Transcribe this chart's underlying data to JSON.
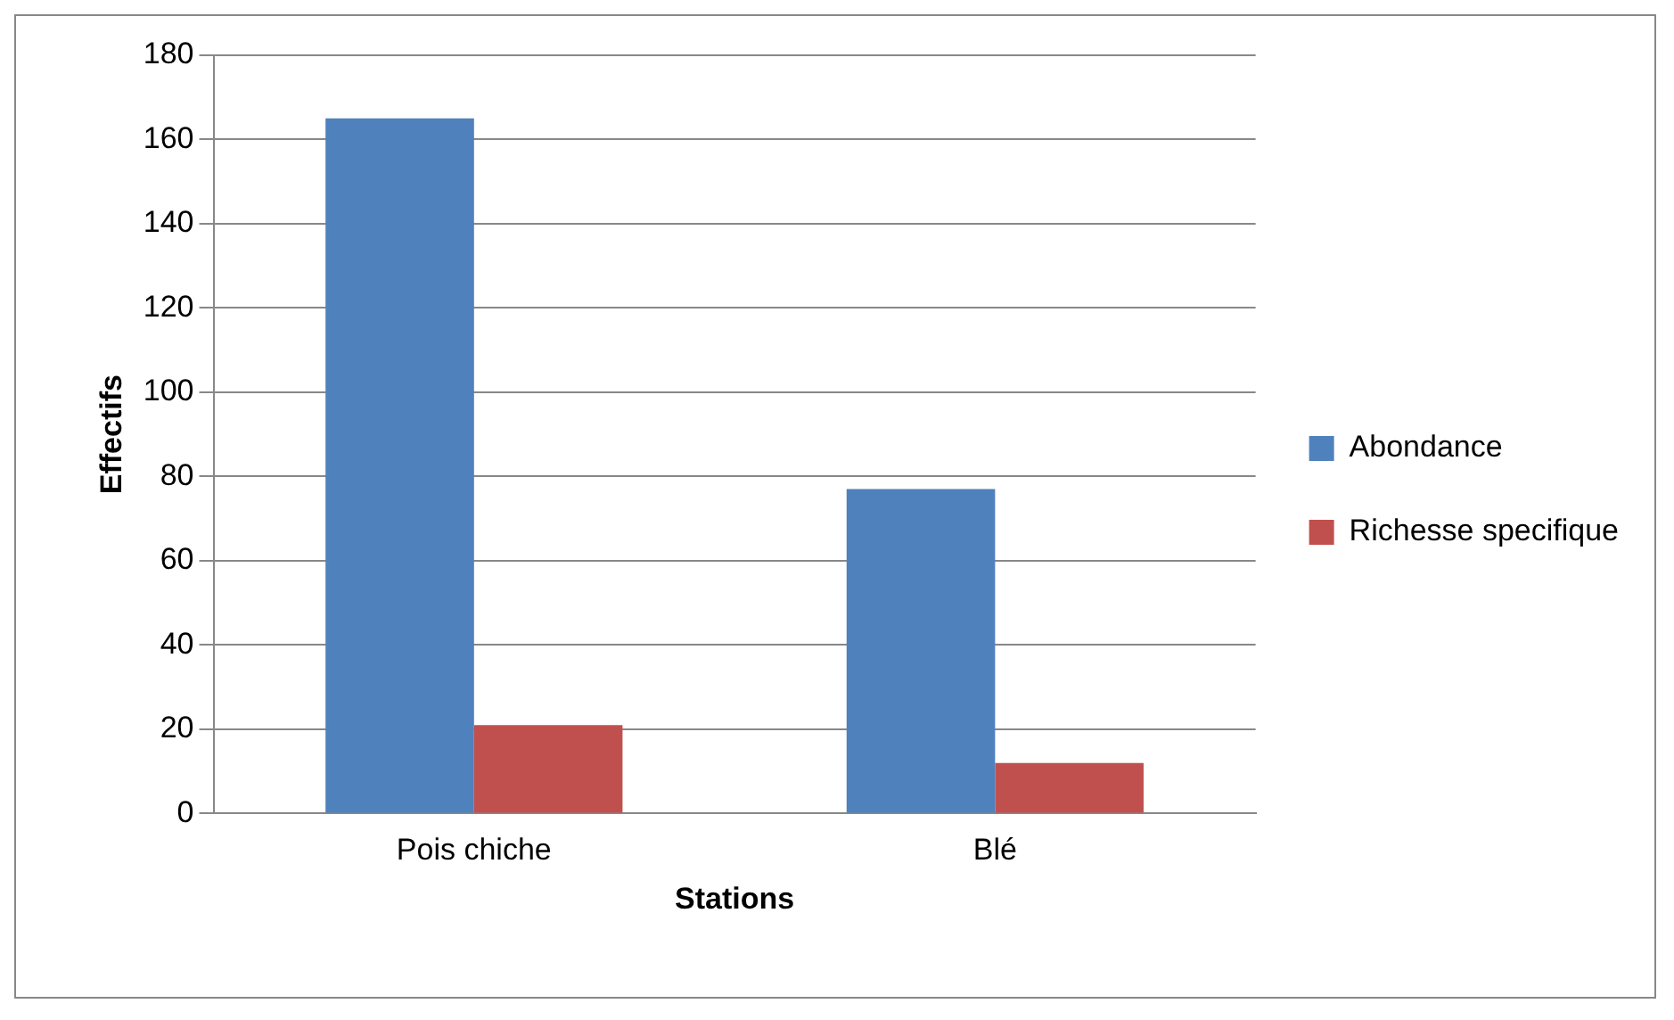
{
  "chart_data": {
    "type": "bar",
    "xlabel": "Stations",
    "ylabel": "Effectifs",
    "categories": [
      "Pois chiche",
      "Blé"
    ],
    "series": [
      {
        "name": "Abondance",
        "color": "#4f81bd",
        "values": [
          165,
          77
        ]
      },
      {
        "name": "Richesse specifique",
        "color": "#c0504d",
        "values": [
          21,
          12
        ]
      }
    ],
    "ylim": [
      0,
      180
    ],
    "yticks": [
      0,
      20,
      40,
      60,
      80,
      100,
      120,
      140,
      160,
      180
    ],
    "grid": "y",
    "legend": "right"
  }
}
